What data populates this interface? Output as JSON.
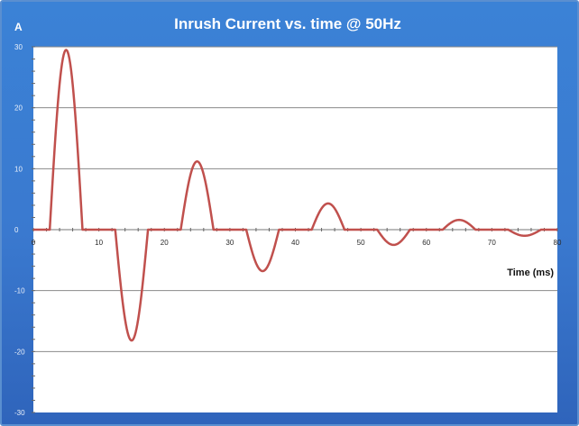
{
  "chart_data": {
    "type": "line",
    "title": "Inrush Current vs. time @ 50Hz",
    "ylabel": "A",
    "xlabel": "Time (ms)",
    "xlim": [
      0,
      80
    ],
    "ylim": [
      -30,
      30
    ],
    "x_ticks": [
      0,
      10,
      20,
      30,
      40,
      50,
      60,
      70,
      80
    ],
    "y_ticks": [
      -30,
      -20,
      -10,
      0,
      10,
      20,
      30
    ],
    "grid": true,
    "legend": "none",
    "series_color": "#c0504d",
    "pulses": [
      {
        "start": 2.5,
        "end": 7.5,
        "peak": 29.5
      },
      {
        "start": 12.5,
        "end": 17.5,
        "peak": -18.2
      },
      {
        "start": 22.5,
        "end": 27.5,
        "peak": 11.2
      },
      {
        "start": 32.5,
        "end": 37.5,
        "peak": -6.8
      },
      {
        "start": 42.5,
        "end": 47.5,
        "peak": 4.3
      },
      {
        "start": 52.5,
        "end": 57.5,
        "peak": -2.5
      },
      {
        "start": 62.5,
        "end": 67.5,
        "peak": 1.6
      },
      {
        "start": 72.5,
        "end": 77.5,
        "peak": -1.0
      }
    ]
  },
  "colors": {
    "background": "#3b82d6",
    "plot_area": "#ffffff",
    "gridline": "#8a8a8a",
    "line": "#c0504d"
  }
}
